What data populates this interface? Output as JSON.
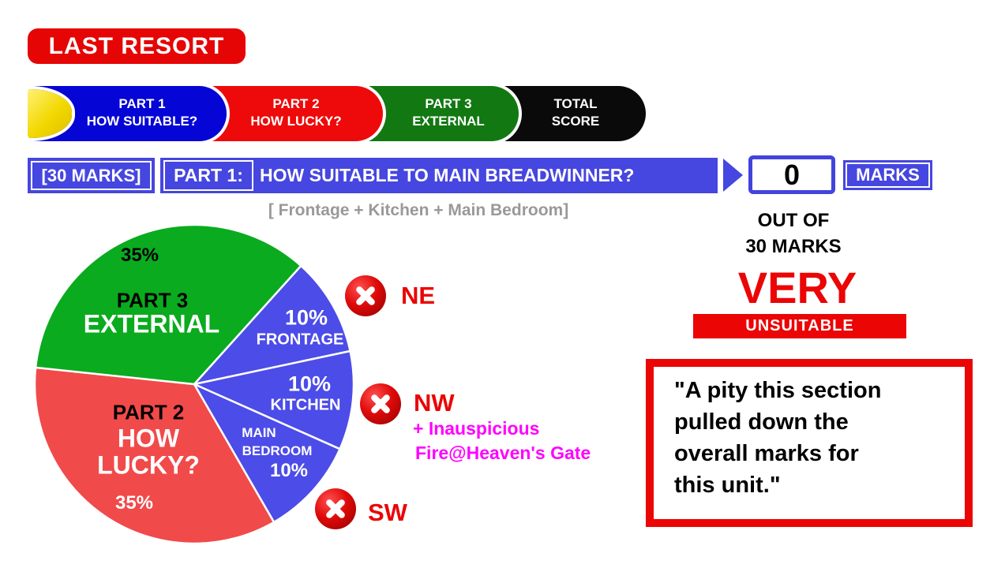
{
  "badge": "LAST RESORT",
  "nav": {
    "tabs": [
      {
        "line1": "PART 1",
        "line2": "HOW SUITABLE?",
        "color": "#0505d6"
      },
      {
        "line1": "PART 2",
        "line2": "HOW LUCKY?",
        "color": "#ee0a0a"
      },
      {
        "line1": "PART 3",
        "line2": "EXTERNAL",
        "color": "#127812"
      },
      {
        "line1": "TOTAL",
        "line2": "SCORE",
        "color": "#0a0a0a"
      }
    ]
  },
  "header": {
    "marks_bracket": "[30 MARKS]",
    "part_label": "PART 1:",
    "question": "HOW SUITABLE TO MAIN BREADWINNER?",
    "subtitle": "[ Frontage + Kitchen + Main Bedroom]"
  },
  "score": {
    "value": "0",
    "marks_label": "MARKS",
    "out_of_line1": "OUT OF",
    "out_of_line2": "30 MARKS",
    "verdict_line1": "VERY",
    "verdict_line2": "UNSUITABLE"
  },
  "quote": {
    "full": "\"A pity this section pulled down the overall marks for this unit.\"",
    "lines": [
      "\"A pity this section",
      "pulled down the",
      "overall marks for",
      "this unit.\""
    ]
  },
  "directions": [
    {
      "label": "NE"
    },
    {
      "label": "NW",
      "note_line1": "+ Inauspicious",
      "note_line2": "Fire@Heaven's Gate"
    },
    {
      "label": "SW"
    }
  ],
  "colors": {
    "accent_red": "#eb0505",
    "royal_blue": "#4646e0",
    "magenta": "#ff00ff",
    "gray_text": "#999999"
  },
  "chart_data": {
    "type": "pie",
    "title": "",
    "start_angle_deg": 48,
    "direction": "clockwise",
    "legend": "none",
    "slices": [
      {
        "name": "FRONTAGE",
        "value": 10,
        "color": "#4c4ce8",
        "labels": [
          "10%",
          "FRONTAGE"
        ]
      },
      {
        "name": "KITCHEN",
        "value": 10,
        "color": "#4c4ce8",
        "labels": [
          "10%",
          "KITCHEN"
        ]
      },
      {
        "name": "MAIN BEDROOM",
        "value": 10,
        "color": "#4c4ce8",
        "labels": [
          "MAIN",
          "BEDROOM",
          "10%"
        ]
      },
      {
        "name": "PART 2 HOW LUCKY?",
        "value": 35,
        "color": "#f14a4a",
        "labels": [
          "PART 2",
          "HOW",
          "LUCKY?",
          "35%"
        ]
      },
      {
        "name": "PART 3 EXTERNAL",
        "value": 35,
        "color": "#0aab1e",
        "labels": [
          "35%",
          "PART 3",
          "EXTERNAL"
        ]
      }
    ]
  }
}
